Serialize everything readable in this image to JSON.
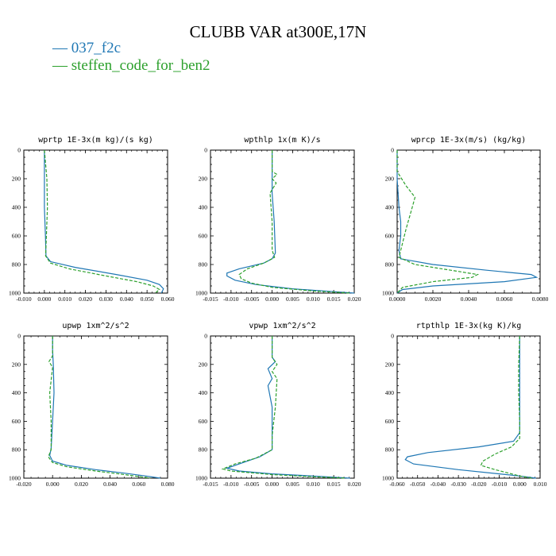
{
  "title": "CLUBB VAR at300E,17N",
  "legend": [
    {
      "name": "037_f2c",
      "color": "#1f77b4"
    },
    {
      "name": "steffen_code_for_ben2",
      "color": "#2ca02c"
    }
  ],
  "chart_data": [
    {
      "type": "line",
      "title": "wprtp  1E-3x(m kg)/(s kg)",
      "xlim": [
        -0.01,
        0.06
      ],
      "ylim": [
        1000,
        0
      ],
      "xticks": [
        "-0.010",
        "0.000",
        "0.010",
        "0.020",
        "0.030",
        "0.040",
        "0.050",
        "0.060"
      ],
      "yticks": [
        "0",
        "200",
        "400",
        "600",
        "800",
        "1000"
      ],
      "series": [
        {
          "values": [
            [
              0.0,
              0
            ],
            [
              0.0,
              200
            ],
            [
              0.0,
              400
            ],
            [
              0.0005,
              600
            ],
            [
              0.0008,
              740
            ],
            [
              0.003,
              780
            ],
            [
              0.015,
              820
            ],
            [
              0.035,
              870
            ],
            [
              0.05,
              910
            ],
            [
              0.056,
              940
            ],
            [
              0.058,
              970
            ],
            [
              0.057,
              1000
            ]
          ]
        },
        {
          "values": [
            [
              0.0,
              0
            ],
            [
              0.0012,
              200
            ],
            [
              0.0015,
              400
            ],
            [
              0.001,
              600
            ],
            [
              0.0006,
              740
            ],
            [
              0.003,
              790
            ],
            [
              0.012,
              830
            ],
            [
              0.03,
              880
            ],
            [
              0.045,
              920
            ],
            [
              0.053,
              950
            ],
            [
              0.056,
              975
            ],
            [
              0.054,
              1000
            ]
          ]
        }
      ]
    },
    {
      "type": "line",
      "title": "wpthlp  1x(m K)/s",
      "xlim": [
        -0.015,
        0.02
      ],
      "ylim": [
        1000,
        0
      ],
      "xticks": [
        "-0.015",
        "-0.010",
        "-0.005",
        "0.000",
        "0.005",
        "0.010",
        "0.015",
        "0.020"
      ],
      "yticks": [
        "0",
        "200",
        "400",
        "600",
        "800",
        "1000"
      ],
      "series": [
        {
          "values": [
            [
              0.0,
              0
            ],
            [
              0.0,
              150
            ],
            [
              0.0,
              200
            ],
            [
              0.0,
              300
            ],
            [
              0.0005,
              500
            ],
            [
              0.0008,
              720
            ],
            [
              0.0,
              760
            ],
            [
              -0.002,
              790
            ],
            [
              -0.008,
              830
            ],
            [
              -0.011,
              860
            ],
            [
              -0.011,
              880
            ],
            [
              -0.009,
              910
            ],
            [
              -0.004,
              940
            ],
            [
              0.005,
              970
            ],
            [
              0.015,
              990
            ],
            [
              0.02,
              1000
            ]
          ]
        },
        {
          "values": [
            [
              0.0,
              0
            ],
            [
              0.0,
              150
            ],
            [
              0.0012,
              170
            ],
            [
              0.0,
              200
            ],
            [
              0.001,
              230
            ],
            [
              -0.0005,
              300
            ],
            [
              0.0,
              500
            ],
            [
              0.0,
              700
            ],
            [
              0.0006,
              750
            ],
            [
              -0.002,
              790
            ],
            [
              -0.006,
              830
            ],
            [
              -0.008,
              870
            ],
            [
              -0.0075,
              900
            ],
            [
              -0.005,
              930
            ],
            [
              0.0,
              960
            ],
            [
              0.01,
              985
            ],
            [
              0.019,
              1000
            ]
          ]
        }
      ]
    },
    {
      "type": "line",
      "title": "wprcp  1E-3x(m/s) (kg/kg)",
      "xlim": [
        0.0,
        0.008
      ],
      "ylim": [
        1000,
        0
      ],
      "xticks": [
        "0.0000",
        "0.0020",
        "0.0040",
        "0.0060",
        "0.0080"
      ],
      "yticks": [
        "0",
        "200",
        "400",
        "600",
        "800",
        "1000"
      ],
      "series": [
        {
          "values": [
            [
              0.0,
              0
            ],
            [
              0.0,
              200
            ],
            [
              0.0001,
              400
            ],
            [
              0.0002,
              500
            ],
            [
              0.0002,
              600
            ],
            [
              0.0001,
              700
            ],
            [
              0.0002,
              760
            ],
            [
              0.002,
              800
            ],
            [
              0.005,
              840
            ],
            [
              0.0075,
              870
            ],
            [
              0.0078,
              890
            ],
            [
              0.006,
              920
            ],
            [
              0.002,
              950
            ],
            [
              0.0003,
              975
            ],
            [
              0.0,
              1000
            ]
          ]
        },
        {
          "values": [
            [
              0.0,
              0
            ],
            [
              0.0,
              150
            ],
            [
              0.0005,
              250
            ],
            [
              0.001,
              330
            ],
            [
              0.0008,
              420
            ],
            [
              0.0005,
              550
            ],
            [
              0.0003,
              650
            ],
            [
              0.0001,
              750
            ],
            [
              0.001,
              800
            ],
            [
              0.003,
              840
            ],
            [
              0.0045,
              870
            ],
            [
              0.0042,
              890
            ],
            [
              0.002,
              920
            ],
            [
              0.0003,
              960
            ],
            [
              0.0,
              1000
            ]
          ]
        }
      ]
    },
    {
      "type": "line",
      "title": "upwp  1xm^2/s^2",
      "xlim": [
        -0.02,
        0.08
      ],
      "ylim": [
        1000,
        0
      ],
      "xticks": [
        "-0.020",
        "0.000",
        "0.020",
        "0.040",
        "0.060",
        "0.080"
      ],
      "yticks": [
        "0",
        "200",
        "400",
        "600",
        "800",
        "1000"
      ],
      "series": [
        {
          "values": [
            [
              0.0,
              0
            ],
            [
              0.0,
              100
            ],
            [
              0.0005,
              200
            ],
            [
              0.001,
              400
            ],
            [
              0.0,
              600
            ],
            [
              -0.001,
              790
            ],
            [
              -0.002,
              840
            ],
            [
              0.0,
              880
            ],
            [
              0.01,
              910
            ],
            [
              0.03,
              940
            ],
            [
              0.05,
              965
            ],
            [
              0.065,
              985
            ],
            [
              0.075,
              1000
            ]
          ]
        },
        {
          "values": [
            [
              0.0,
              0
            ],
            [
              0.0,
              140
            ],
            [
              -0.0025,
              180
            ],
            [
              0.0,
              220
            ],
            [
              -0.002,
              400
            ],
            [
              -0.001,
              600
            ],
            [
              -0.001,
              800
            ],
            [
              -0.003,
              850
            ],
            [
              0.0,
              890
            ],
            [
              0.01,
              920
            ],
            [
              0.03,
              950
            ],
            [
              0.05,
              975
            ],
            [
              0.068,
              1000
            ]
          ]
        }
      ]
    },
    {
      "type": "line",
      "title": "vpwp  1xm^2/s^2",
      "xlim": [
        -0.015,
        0.02
      ],
      "ylim": [
        1000,
        0
      ],
      "xticks": [
        "-0.015",
        "-0.010",
        "-0.005",
        "0.000",
        "0.005",
        "0.010",
        "0.015",
        "0.020"
      ],
      "yticks": [
        "0",
        "200",
        "400",
        "600",
        "800",
        "1000"
      ],
      "series": [
        {
          "values": [
            [
              0.0,
              0
            ],
            [
              0.0,
              150
            ],
            [
              0.0008,
              180
            ],
            [
              -0.001,
              230
            ],
            [
              0.0,
              300
            ],
            [
              -0.001,
              350
            ],
            [
              0.0,
              500
            ],
            [
              0.0,
              700
            ],
            [
              0.0,
              800
            ],
            [
              -0.003,
              850
            ],
            [
              -0.008,
              900
            ],
            [
              -0.011,
              930
            ],
            [
              -0.008,
              950
            ],
            [
              0.0,
              970
            ],
            [
              0.01,
              985
            ],
            [
              0.019,
              1000
            ]
          ]
        },
        {
          "values": [
            [
              0.0,
              0
            ],
            [
              0.0,
              150
            ],
            [
              0.0012,
              200
            ],
            [
              0.0,
              250
            ],
            [
              0.0012,
              300
            ],
            [
              0.0008,
              500
            ],
            [
              0.0,
              700
            ],
            [
              0.0,
              800
            ],
            [
              -0.004,
              860
            ],
            [
              -0.009,
              900
            ],
            [
              -0.012,
              935
            ],
            [
              -0.01,
              950
            ],
            [
              0.0,
              975
            ],
            [
              0.01,
              990
            ],
            [
              0.018,
              1000
            ]
          ]
        }
      ]
    },
    {
      "type": "line",
      "title": "rtpthlp  1E-3x(kg K)/kg",
      "xlim": [
        -0.06,
        0.01
      ],
      "ylim": [
        1000,
        0
      ],
      "xticks": [
        "-0.060",
        "-0.050",
        "-0.040",
        "-0.030",
        "-0.020",
        "-0.010",
        "0.000",
        "0.010"
      ],
      "yticks": [
        "0",
        "200",
        "400",
        "600",
        "800",
        "1000"
      ],
      "series": [
        {
          "values": [
            [
              0.0,
              0
            ],
            [
              0.0,
              200
            ],
            [
              0.0,
              400
            ],
            [
              0.0,
              600
            ],
            [
              0.0,
              680
            ],
            [
              -0.003,
              740
            ],
            [
              -0.02,
              780
            ],
            [
              -0.045,
              820
            ],
            [
              -0.055,
              850
            ],
            [
              -0.056,
              870
            ],
            [
              -0.052,
              900
            ],
            [
              -0.03,
              940
            ],
            [
              -0.01,
              970
            ],
            [
              0.0,
              985
            ],
            [
              0.008,
              1000
            ]
          ]
        },
        {
          "values": [
            [
              0.0,
              0
            ],
            [
              -0.0005,
              200
            ],
            [
              -0.0005,
              400
            ],
            [
              0.0,
              600
            ],
            [
              0.0,
              720
            ],
            [
              -0.004,
              780
            ],
            [
              -0.012,
              830
            ],
            [
              -0.018,
              880
            ],
            [
              -0.019,
              910
            ],
            [
              -0.012,
              940
            ],
            [
              -0.004,
              970
            ],
            [
              0.0,
              985
            ],
            [
              0.006,
              1000
            ]
          ]
        }
      ]
    }
  ]
}
